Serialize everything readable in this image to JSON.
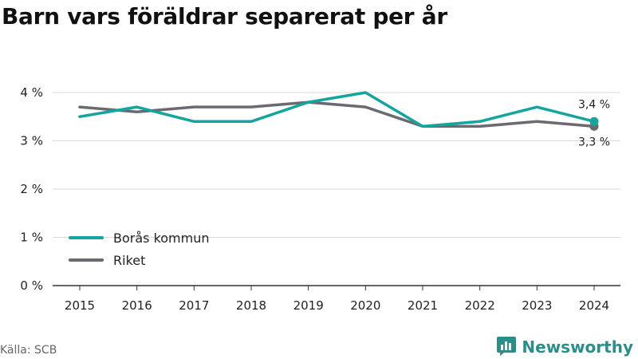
{
  "title": "Barn vars föräldrar separerat per år",
  "source": "Källa: SCB",
  "brand": "Newsworthy",
  "colors": {
    "boras": "#13a59e",
    "riket": "#6b6a70",
    "grid": "#d9d9d9",
    "axis": "#333333",
    "brand": "#2a8f8a"
  },
  "chart_data": {
    "type": "line",
    "categories": [
      "2015",
      "2016",
      "2017",
      "2018",
      "2019",
      "2020",
      "2021",
      "2022",
      "2023",
      "2024"
    ],
    "series": [
      {
        "name": "Borås kommun",
        "color": "#13a59e",
        "values": [
          3.5,
          3.7,
          3.4,
          3.4,
          3.8,
          4.0,
          3.3,
          3.4,
          3.7,
          3.4
        ]
      },
      {
        "name": "Riket",
        "color": "#6b6a70",
        "values": [
          3.7,
          3.6,
          3.7,
          3.7,
          3.8,
          3.7,
          3.3,
          3.3,
          3.4,
          3.3
        ]
      }
    ],
    "y_ticks": [
      "0 %",
      "1 %",
      "2 %",
      "3 %",
      "4 %"
    ],
    "y_tick_values": [
      0,
      1,
      2,
      3,
      4
    ],
    "ylim": [
      0,
      4.4
    ],
    "end_labels": [
      "3,4 %",
      "3,3 %"
    ],
    "grid": true,
    "legend_position": "bottom-left"
  }
}
